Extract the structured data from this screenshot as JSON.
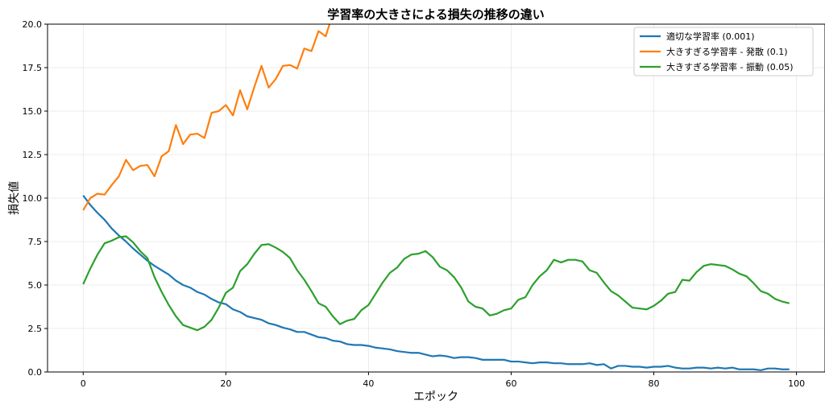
{
  "chart_data": {
    "type": "line",
    "title": "学習率の大きさによる損失の推移の違い",
    "xlabel": "エポック",
    "ylabel": "損失値",
    "xlim": [
      -5,
      104
    ],
    "ylim": [
      0,
      20
    ],
    "xticks": [
      0,
      20,
      40,
      60,
      80,
      100
    ],
    "yticks": [
      0.0,
      2.5,
      5.0,
      7.5,
      10.0,
      12.5,
      15.0,
      17.5,
      20.0
    ],
    "xtick_labels": [
      "0",
      "20",
      "40",
      "60",
      "80",
      "100"
    ],
    "ytick_labels": [
      "0.0",
      "2.5",
      "5.0",
      "7.5",
      "10.0",
      "12.5",
      "15.0",
      "17.5",
      "20.0"
    ],
    "grid": true,
    "legend_position": "top-right",
    "series": [
      {
        "name": "適切な学習率 (0.001)",
        "color": "#1f77b4",
        "x": [
          0,
          1,
          2,
          3,
          4,
          5,
          6,
          7,
          8,
          9,
          10,
          11,
          12,
          13,
          14,
          15,
          16,
          17,
          18,
          19,
          20,
          21,
          22,
          23,
          24,
          25,
          26,
          27,
          28,
          29,
          30,
          31,
          32,
          33,
          34,
          35,
          36,
          37,
          38,
          39,
          40,
          41,
          42,
          43,
          44,
          45,
          46,
          47,
          48,
          49,
          50,
          51,
          52,
          53,
          54,
          55,
          56,
          57,
          58,
          59,
          60,
          61,
          62,
          63,
          64,
          65,
          66,
          67,
          68,
          69,
          70,
          71,
          72,
          73,
          74,
          75,
          76,
          77,
          78,
          79,
          80,
          81,
          82,
          83,
          84,
          85,
          86,
          87,
          88,
          89,
          90,
          91,
          92,
          93,
          94,
          95,
          96,
          97,
          98,
          99
        ],
        "values": [
          10.15,
          9.6,
          9.15,
          8.75,
          8.25,
          7.85,
          7.5,
          7.1,
          6.75,
          6.4,
          6.1,
          5.85,
          5.6,
          5.25,
          5.0,
          4.85,
          4.6,
          4.45,
          4.2,
          4.0,
          3.9,
          3.6,
          3.45,
          3.2,
          3.1,
          3.0,
          2.8,
          2.7,
          2.55,
          2.45,
          2.3,
          2.3,
          2.15,
          2.0,
          1.95,
          1.8,
          1.75,
          1.6,
          1.55,
          1.55,
          1.5,
          1.4,
          1.35,
          1.3,
          1.2,
          1.15,
          1.1,
          1.1,
          1.0,
          0.9,
          0.95,
          0.9,
          0.8,
          0.85,
          0.85,
          0.8,
          0.7,
          0.7,
          0.7,
          0.7,
          0.6,
          0.6,
          0.55,
          0.5,
          0.55,
          0.55,
          0.5,
          0.5,
          0.45,
          0.45,
          0.45,
          0.5,
          0.4,
          0.45,
          0.2,
          0.35,
          0.35,
          0.3,
          0.3,
          0.25,
          0.3,
          0.3,
          0.35,
          0.25,
          0.2,
          0.2,
          0.25,
          0.25,
          0.2,
          0.25,
          0.2,
          0.25,
          0.15,
          0.15,
          0.15,
          0.1,
          0.2,
          0.2,
          0.15,
          0.15
        ]
      },
      {
        "name": "大きすぎる学習率 - 発散 (0.1)",
        "color": "#ff7f0e",
        "x": [
          0,
          1,
          2,
          3,
          4,
          5,
          6,
          7,
          8,
          9,
          10,
          11,
          12,
          13,
          14,
          15,
          16,
          17,
          18,
          19,
          20,
          21,
          22,
          23,
          24,
          25,
          26,
          27,
          28,
          29,
          30,
          31,
          32,
          33,
          34,
          35
        ],
        "values": [
          9.3,
          10.0,
          10.25,
          10.2,
          10.75,
          11.25,
          12.2,
          11.6,
          11.85,
          11.9,
          11.25,
          12.4,
          12.7,
          14.2,
          13.1,
          13.65,
          13.7,
          13.45,
          14.9,
          15.0,
          15.35,
          14.75,
          16.2,
          15.1,
          16.4,
          17.6,
          16.35,
          16.85,
          17.6,
          17.65,
          17.45,
          18.6,
          18.45,
          19.6,
          19.3,
          20.6
        ]
      },
      {
        "name": "大きすぎる学習率 - 振動 (0.05)",
        "color": "#2ca02c",
        "x": [
          0,
          1,
          2,
          3,
          4,
          5,
          6,
          7,
          8,
          9,
          10,
          11,
          12,
          13,
          14,
          15,
          16,
          17,
          18,
          19,
          20,
          21,
          22,
          23,
          24,
          25,
          26,
          27,
          28,
          29,
          30,
          31,
          32,
          33,
          34,
          35,
          36,
          37,
          38,
          39,
          40,
          41,
          42,
          43,
          44,
          45,
          46,
          47,
          48,
          49,
          50,
          51,
          52,
          53,
          54,
          55,
          56,
          57,
          58,
          59,
          60,
          61,
          62,
          63,
          64,
          65,
          66,
          67,
          68,
          69,
          70,
          71,
          72,
          73,
          74,
          75,
          76,
          77,
          78,
          79,
          80,
          81,
          82,
          83,
          84,
          85,
          86,
          87,
          88,
          89,
          90,
          91,
          92,
          93,
          94,
          95,
          96,
          97,
          98,
          99
        ],
        "values": [
          5.05,
          5.95,
          6.75,
          7.4,
          7.55,
          7.75,
          7.8,
          7.45,
          6.95,
          6.55,
          5.45,
          4.6,
          3.85,
          3.2,
          2.7,
          2.55,
          2.4,
          2.6,
          3.0,
          3.7,
          4.55,
          4.85,
          5.8,
          6.2,
          6.8,
          7.3,
          7.35,
          7.15,
          6.9,
          6.55,
          5.85,
          5.3,
          4.65,
          3.95,
          3.75,
          3.2,
          2.75,
          2.95,
          3.05,
          3.55,
          3.85,
          4.5,
          5.15,
          5.7,
          6.0,
          6.5,
          6.75,
          6.8,
          6.95,
          6.6,
          6.05,
          5.85,
          5.45,
          4.85,
          4.05,
          3.75,
          3.65,
          3.25,
          3.35,
          3.55,
          3.65,
          4.15,
          4.3,
          5.0,
          5.5,
          5.85,
          6.45,
          6.3,
          6.45,
          6.45,
          6.35,
          5.85,
          5.7,
          5.15,
          4.65,
          4.4,
          4.05,
          3.7,
          3.65,
          3.6,
          3.8,
          4.1,
          4.5,
          4.6,
          5.3,
          5.25,
          5.75,
          6.1,
          6.2,
          6.15,
          6.1,
          5.9,
          5.65,
          5.5,
          5.1,
          4.65,
          4.5,
          4.2,
          4.05,
          3.95
        ]
      }
    ]
  }
}
